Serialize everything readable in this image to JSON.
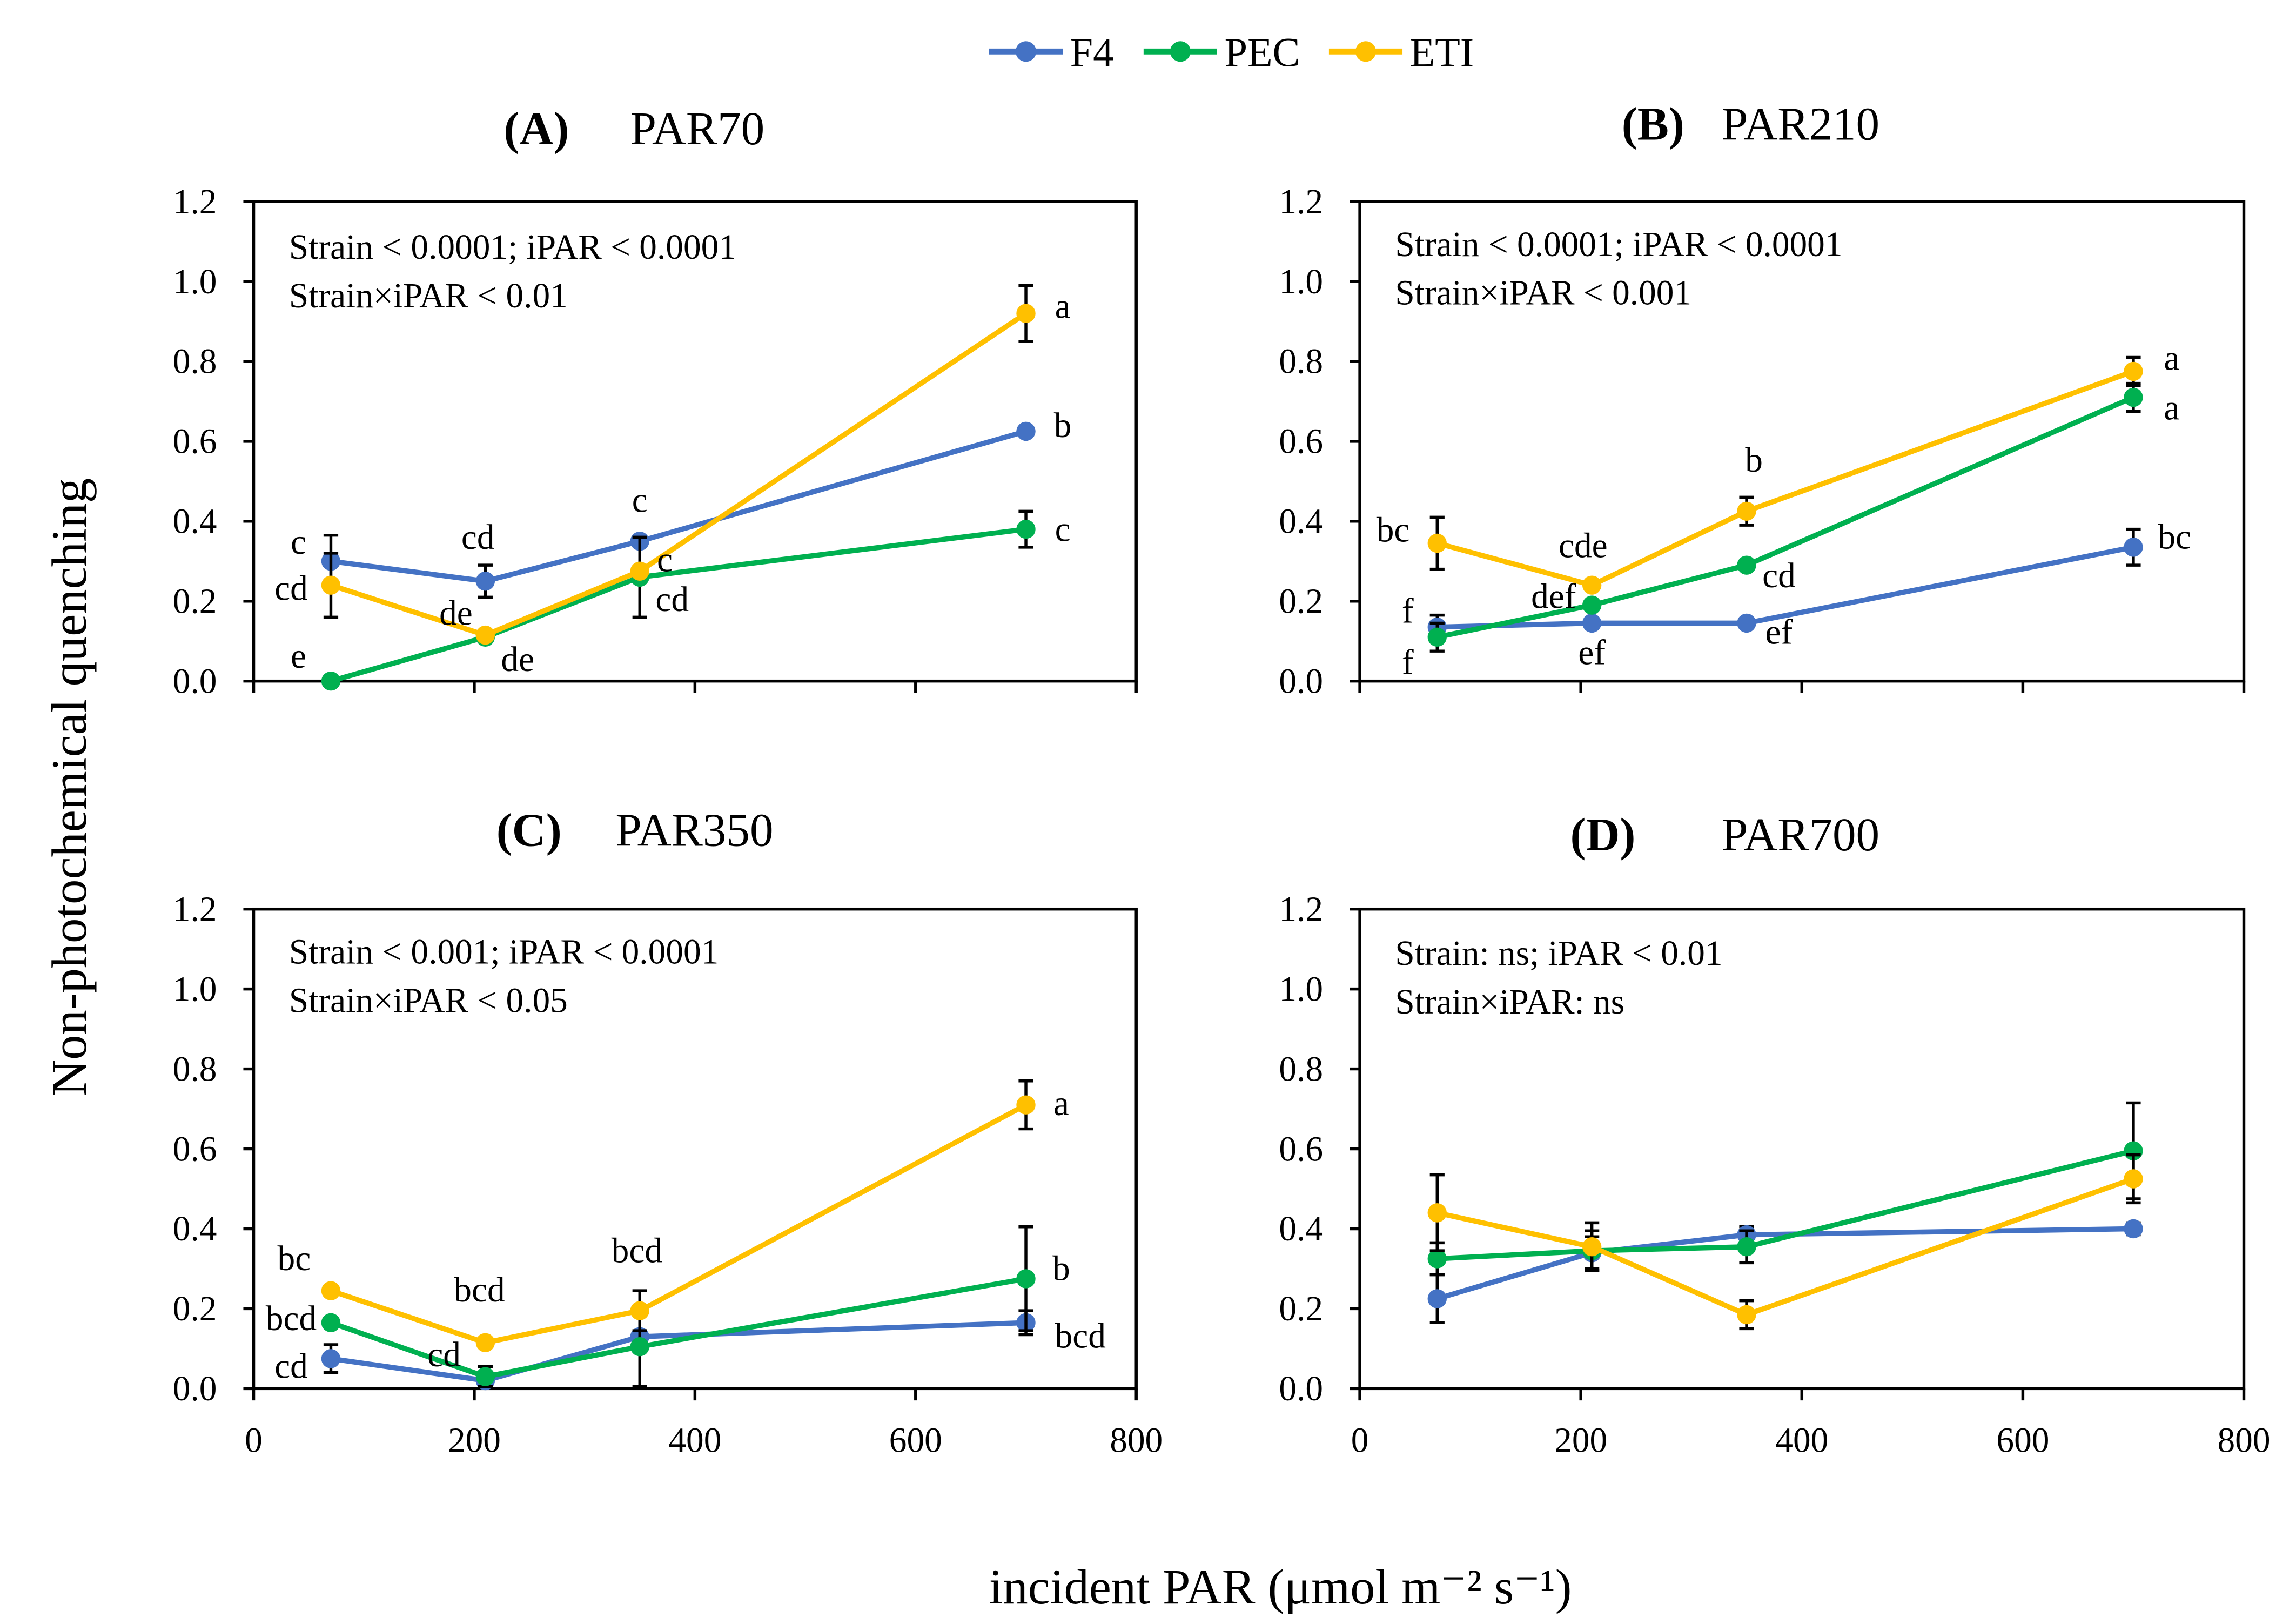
{
  "legend": [
    {
      "name": "F4",
      "color": "#4472C4"
    },
    {
      "name": "PEC",
      "color": "#00B050"
    },
    {
      "name": "ETI",
      "color": "#FFC000"
    }
  ],
  "ylabel": "Non-photochemical  quenching",
  "xlabel": "incident PAR (μmol m⁻² s⁻¹)",
  "chart_data": [
    {
      "type": "line",
      "panel": "(A)",
      "title": "PAR70",
      "stats": [
        "Strain < 0.0001;  iPAR < 0.0001",
        "Strain×iPAR < 0.01"
      ],
      "x": [
        70,
        210,
        350,
        700
      ],
      "xlim": [
        0,
        800
      ],
      "ylim": [
        0,
        1.2
      ],
      "yticks": [
        "0.0",
        "0.2",
        "0.4",
        "0.6",
        "0.8",
        "1.0",
        "1.2"
      ],
      "xticks": [],
      "series": [
        {
          "name": "F4",
          "values": [
            0.3,
            0.25,
            0.35,
            0.625
          ],
          "errors": [
            0.065,
            0.04,
            0.0,
            0.0
          ],
          "letters": [
            "c",
            "cd",
            "c",
            "b"
          ]
        },
        {
          "name": "PEC",
          "values": [
            0.0,
            0.11,
            0.26,
            0.38
          ],
          "errors": [
            0.0,
            0.0,
            0.1,
            0.045
          ],
          "letters": [
            "e",
            "de",
            "cd",
            "c"
          ]
        },
        {
          "name": "ETI",
          "values": [
            0.24,
            0.115,
            0.275,
            0.92
          ],
          "errors": [
            0.08,
            0.0,
            0.0,
            0.07
          ],
          "letters": [
            "cd",
            "de",
            "c",
            "a"
          ]
        }
      ]
    },
    {
      "type": "line",
      "panel": "(B)",
      "title": "PAR210",
      "stats": [
        "Strain < 0.0001;  iPAR < 0.0001",
        "Strain×iPAR < 0.001"
      ],
      "x": [
        70,
        210,
        350,
        700
      ],
      "xlim": [
        0,
        800
      ],
      "ylim": [
        0,
        1.2
      ],
      "yticks": [
        "0.0",
        "0.2",
        "0.4",
        "0.6",
        "0.8",
        "1.0",
        "1.2"
      ],
      "xticks": [],
      "series": [
        {
          "name": "F4",
          "values": [
            0.135,
            0.145,
            0.145,
            0.335
          ],
          "errors": [
            0.03,
            0.0,
            0.0,
            0.045
          ],
          "letters": [
            "f",
            "ef",
            "ef",
            "bc"
          ]
        },
        {
          "name": "PEC",
          "values": [
            0.11,
            0.19,
            0.29,
            0.71
          ],
          "errors": [
            0.035,
            0.0,
            0.0,
            0.035
          ],
          "letters": [
            "f",
            "def",
            "cd",
            "a"
          ]
        },
        {
          "name": "ETI",
          "values": [
            0.345,
            0.24,
            0.425,
            0.775
          ],
          "errors": [
            0.065,
            0.0,
            0.035,
            0.035
          ],
          "letters": [
            "bc",
            "cde",
            "b",
            "a"
          ]
        }
      ]
    },
    {
      "type": "line",
      "panel": "(C)",
      "title": "PAR350",
      "stats": [
        "Strain < 0.001;  iPAR < 0.0001",
        "Strain×iPAR < 0.05"
      ],
      "x": [
        70,
        210,
        350,
        700
      ],
      "xlim": [
        0,
        800
      ],
      "ylim": [
        0,
        1.2
      ],
      "yticks": [
        "0.0",
        "0.2",
        "0.4",
        "0.6",
        "0.8",
        "1.0",
        "1.2"
      ],
      "xticks": [
        "0",
        "200",
        "400",
        "600",
        "800"
      ],
      "series": [
        {
          "name": "F4",
          "values": [
            0.075,
            0.02,
            0.13,
            0.165
          ],
          "errors": [
            0.035,
            0.0,
            0.0,
            0.03
          ],
          "letters": [
            "cd",
            "",
            "",
            "bcd"
          ]
        },
        {
          "name": "PEC",
          "values": [
            0.165,
            0.03,
            0.105,
            0.275
          ],
          "errors": [
            0.0,
            0.025,
            0.1,
            0.13
          ],
          "letters": [
            "bcd",
            "cd",
            "",
            "b"
          ]
        },
        {
          "name": "ETI",
          "values": [
            0.245,
            0.115,
            0.195,
            0.71
          ],
          "errors": [
            0.0,
            0.0,
            0.05,
            0.06
          ],
          "letters": [
            "bc",
            "bcd",
            "bcd",
            "a"
          ]
        }
      ]
    },
    {
      "type": "line",
      "panel": "(D)",
      "title": "PAR700",
      "stats": [
        "Strain: ns;  iPAR < 0.01",
        "Strain×iPAR: ns"
      ],
      "x": [
        70,
        210,
        350,
        700
      ],
      "xlim": [
        0,
        800
      ],
      "ylim": [
        0,
        1.2
      ],
      "yticks": [
        "0.0",
        "0.2",
        "0.4",
        "0.6",
        "0.8",
        "1.0",
        "1.2"
      ],
      "xticks": [
        "0",
        "200",
        "400",
        "600",
        "800"
      ],
      "series": [
        {
          "name": "F4",
          "values": [
            0.225,
            0.34,
            0.385,
            0.4
          ],
          "errors": [
            0.06,
            0.04,
            0.02,
            0.015
          ],
          "letters": [
            "",
            "",
            "",
            ""
          ]
        },
        {
          "name": "PEC",
          "values": [
            0.325,
            0.345,
            0.355,
            0.595
          ],
          "errors": [
            0.04,
            0.05,
            0.04,
            0.12
          ],
          "letters": [
            "",
            "",
            "",
            ""
          ]
        },
        {
          "name": "ETI",
          "values": [
            0.44,
            0.355,
            0.185,
            0.525
          ],
          "errors": [
            0.095,
            0.06,
            0.035,
            0.06
          ],
          "letters": [
            "",
            "",
            "",
            ""
          ]
        }
      ]
    }
  ]
}
